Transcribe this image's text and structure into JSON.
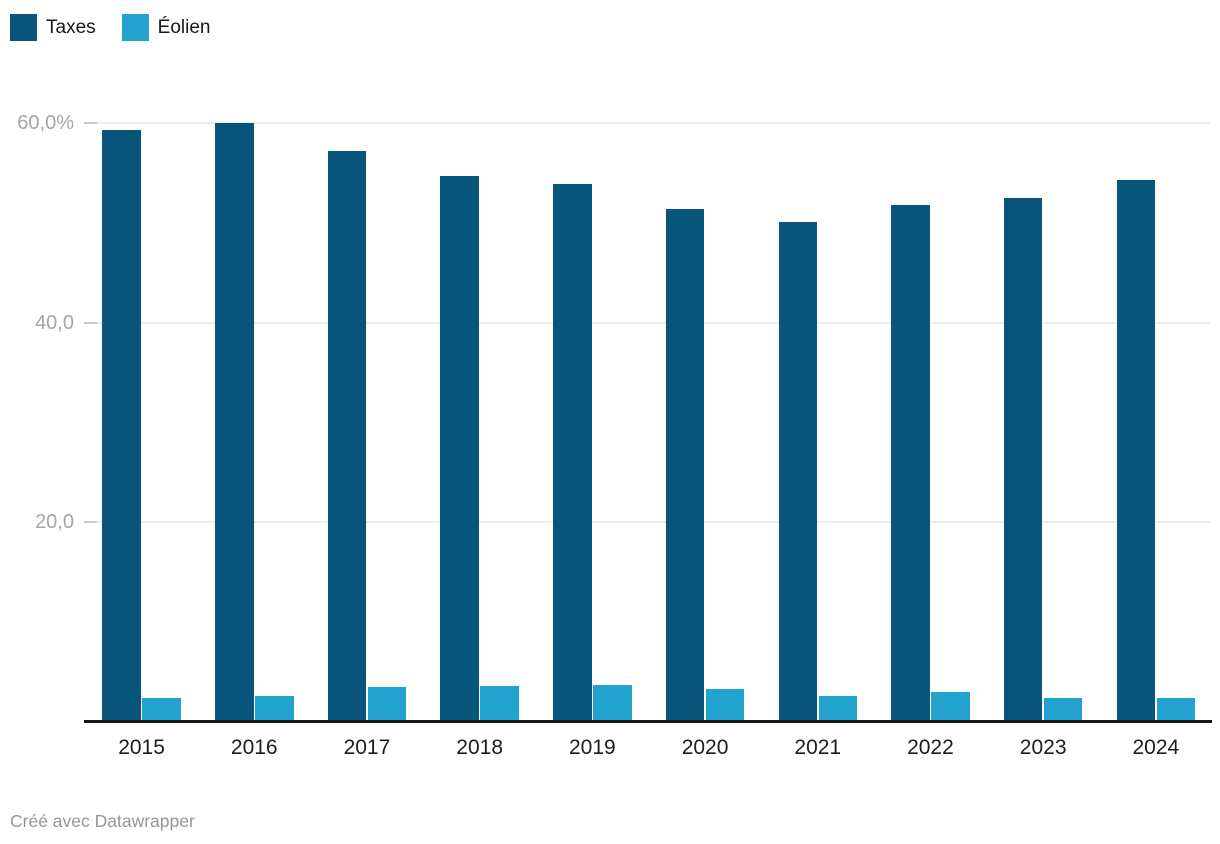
{
  "legend": {
    "items": [
      {
        "label": "Taxes",
        "color": "#07557a"
      },
      {
        "label": "Éolien",
        "color": "#22a3cf"
      }
    ]
  },
  "footer": {
    "attribution": "Créé avec Datawrapper"
  },
  "chart_data": {
    "type": "bar",
    "title": "",
    "categories": [
      "2015",
      "2016",
      "2017",
      "2018",
      "2019",
      "2020",
      "2021",
      "2022",
      "2023",
      "2024"
    ],
    "series": [
      {
        "name": "Taxes",
        "color": "#07557a",
        "values": [
          59.3,
          60.0,
          57.2,
          54.7,
          53.9,
          51.4,
          50.1,
          51.8,
          52.5,
          54.3
        ]
      },
      {
        "name": "Éolien",
        "color": "#22a3cf",
        "values": [
          2.4,
          2.6,
          3.5,
          3.6,
          3.7,
          3.3,
          2.6,
          3.0,
          2.4,
          2.4
        ]
      }
    ],
    "unit": "%",
    "ylim": [
      0,
      62
    ],
    "yticks": [
      {
        "value": 20,
        "label": "20,0"
      },
      {
        "value": 40,
        "label": "40,0"
      },
      {
        "value": 60,
        "label": "60,0%"
      }
    ],
    "grid": true,
    "legend_position": "top-left"
  }
}
